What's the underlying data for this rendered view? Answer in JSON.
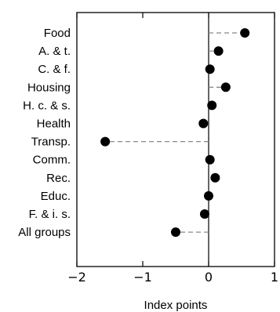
{
  "chart_data": {
    "type": "dot",
    "title": "",
    "xlabel": "Index points",
    "ylabel": "",
    "xlim": [
      -2,
      1
    ],
    "x_ticks": [
      -2,
      -1,
      0,
      1
    ],
    "x_tick_labels": [
      "−2",
      "−1",
      "0",
      "1"
    ],
    "grid": false,
    "legend": "none",
    "categories": [
      "Food",
      "A. & t.",
      "C. & f.",
      "Housing",
      "H. c. & s.",
      "Health",
      "Transp.",
      "Comm.",
      "Rec.",
      "Educ.",
      "F. & i. s.",
      "All groups"
    ],
    "values": [
      0.55,
      0.15,
      0.02,
      0.26,
      0.05,
      -0.08,
      -1.57,
      0.02,
      0.1,
      0.0,
      -0.06,
      -0.5
    ],
    "colors": {
      "marker": "#000000",
      "connector": "#888888",
      "axis": "#000000"
    }
  }
}
